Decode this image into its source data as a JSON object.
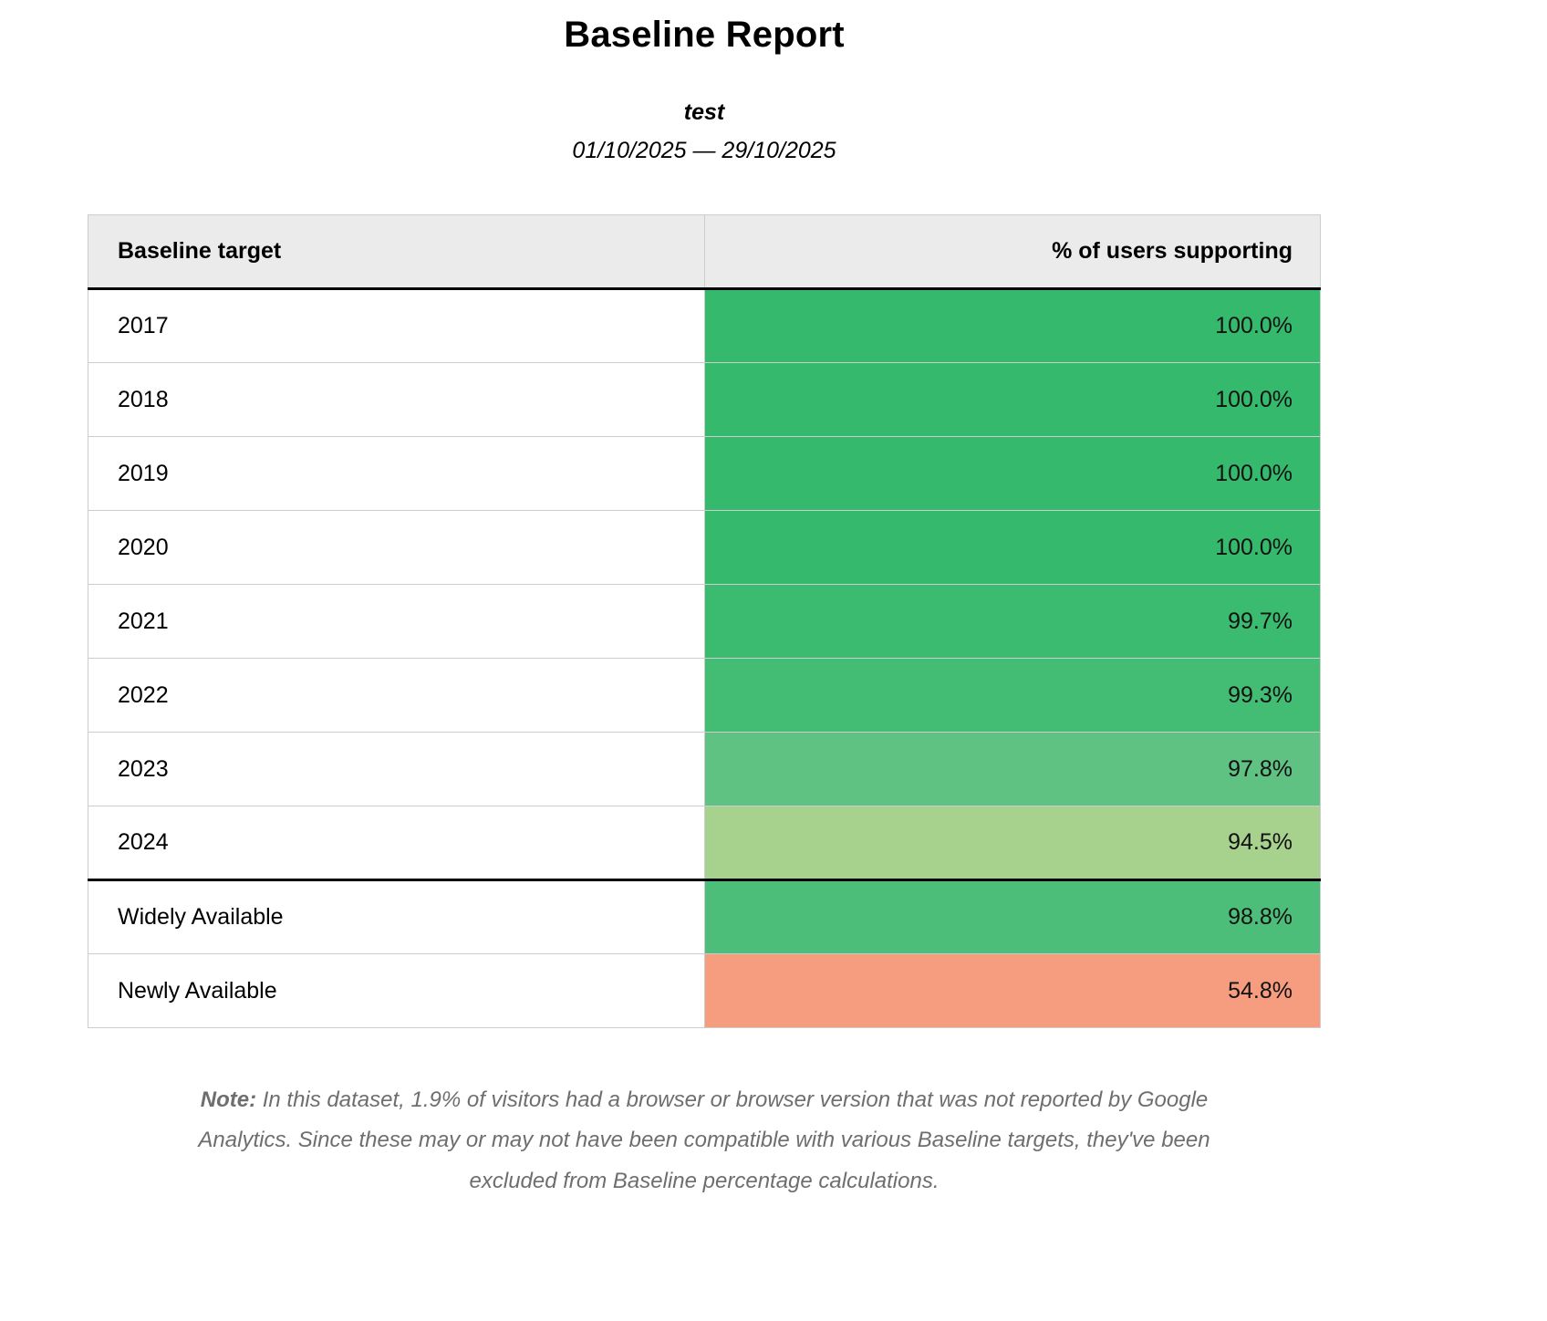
{
  "title": "Baseline Report",
  "subtitle": "test",
  "date_range": "01/10/2025 — 29/10/2025",
  "table": {
    "headers": [
      "Baseline target",
      "% of users supporting"
    ],
    "rows": [
      {
        "label": "2017",
        "value": "100.0%",
        "color": "#35ba6d"
      },
      {
        "label": "2018",
        "value": "100.0%",
        "color": "#35ba6d"
      },
      {
        "label": "2019",
        "value": "100.0%",
        "color": "#35ba6d"
      },
      {
        "label": "2020",
        "value": "100.0%",
        "color": "#35ba6d"
      },
      {
        "label": "2021",
        "value": "99.7%",
        "color": "#3abb70"
      },
      {
        "label": "2022",
        "value": "99.3%",
        "color": "#43bd74"
      },
      {
        "label": "2023",
        "value": "97.8%",
        "color": "#5fc283"
      },
      {
        "label": "2024",
        "value": "94.5%",
        "color": "#a7d28e"
      },
      {
        "label": "Widely Available",
        "value": "98.8%",
        "color": "#4cbe79"
      },
      {
        "label": "Newly Available",
        "value": "54.8%",
        "color": "#f59d7e"
      }
    ]
  },
  "note": {
    "label": "Note:",
    "text": "In this dataset, 1.9% of visitors had a browser or browser version that was not reported by Google Analytics. Since these may or may not have been compatible with various Baseline targets, they've been excluded from Baseline percentage calculations."
  }
}
